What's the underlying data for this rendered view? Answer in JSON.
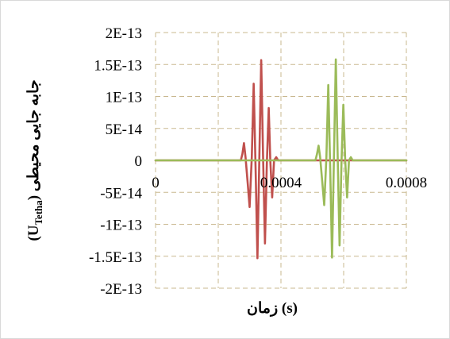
{
  "chart_data": {
    "type": "line",
    "title": "",
    "xlabel": "زمان (s)",
    "ylabel": {
      "prefix": "(U",
      "subscript": "Tetha",
      "suffix": ") جابه جایی محیطی"
    },
    "xlim": [
      0,
      0.0008
    ],
    "ylim": [
      -2e-13,
      2e-13
    ],
    "xticks": [
      {
        "value": 0,
        "label": "0"
      },
      {
        "value": 0.0004,
        "label": "0.0004"
      },
      {
        "value": 0.0008,
        "label": "0.0008"
      }
    ],
    "yticks": [
      {
        "value": 2e-13,
        "label": "2E-13"
      },
      {
        "value": 1.5e-13,
        "label": "1.5E-13"
      },
      {
        "value": 1e-13,
        "label": "1E-13"
      },
      {
        "value": 5e-14,
        "label": "5E-14"
      },
      {
        "value": 0,
        "label": "0"
      },
      {
        "value": -5e-14,
        "label": "-5E-14"
      },
      {
        "value": -1e-13,
        "label": "-1E-13"
      },
      {
        "value": -1.5e-13,
        "label": "-1.5E-13"
      },
      {
        "value": -2e-13,
        "label": "-2E-13"
      }
    ],
    "x_gridlines": [
      0.0002,
      0.0004,
      0.0006,
      0.0008
    ],
    "grid": "dashed",
    "legend": "none",
    "series": [
      {
        "color": "#c0504d",
        "x": [
          0.0,
          0.000272,
          0.000277,
          0.000282,
          0.000287,
          0.000294,
          0.0003,
          0.000307,
          0.000313,
          0.000319,
          0.000325,
          0.000331,
          0.000337,
          0.000343,
          0.000349,
          0.000355,
          0.000361,
          0.000366,
          0.000372,
          0.000378,
          0.000385,
          0.000391,
          0.0008
        ],
        "y": [
          0,
          0,
          1e-14,
          2.7e-14,
          5e-15,
          -3.6e-14,
          -7.3e-14,
          5e-15,
          1.2e-13,
          -1e-14,
          -1.53e-13,
          3e-15,
          1.57e-13,
          5e-15,
          -1.3e-13,
          -5e-15,
          8.2e-14,
          0,
          -5.8e-14,
          0,
          5e-15,
          0,
          0
        ]
      },
      {
        "color": "#9bbb59",
        "x": [
          0.0,
          0.00051,
          0.000515,
          0.00052,
          0.000525,
          0.000532,
          0.000538,
          0.000545,
          0.000551,
          0.000557,
          0.000563,
          0.000569,
          0.000575,
          0.000581,
          0.000587,
          0.000593,
          0.000599,
          0.000605,
          0.000611,
          0.000617,
          0.000623,
          0.000629,
          0.0008
        ],
        "y": [
          0,
          0,
          1e-14,
          2.3e-14,
          5e-15,
          -3.5e-14,
          -7e-14,
          5e-15,
          1.18e-13,
          -1e-14,
          -1.52e-13,
          3e-15,
          1.58e-13,
          5e-15,
          -1.33e-13,
          -5e-15,
          8.7e-14,
          0,
          -5.8e-14,
          0,
          5e-15,
          0,
          0
        ]
      }
    ]
  }
}
